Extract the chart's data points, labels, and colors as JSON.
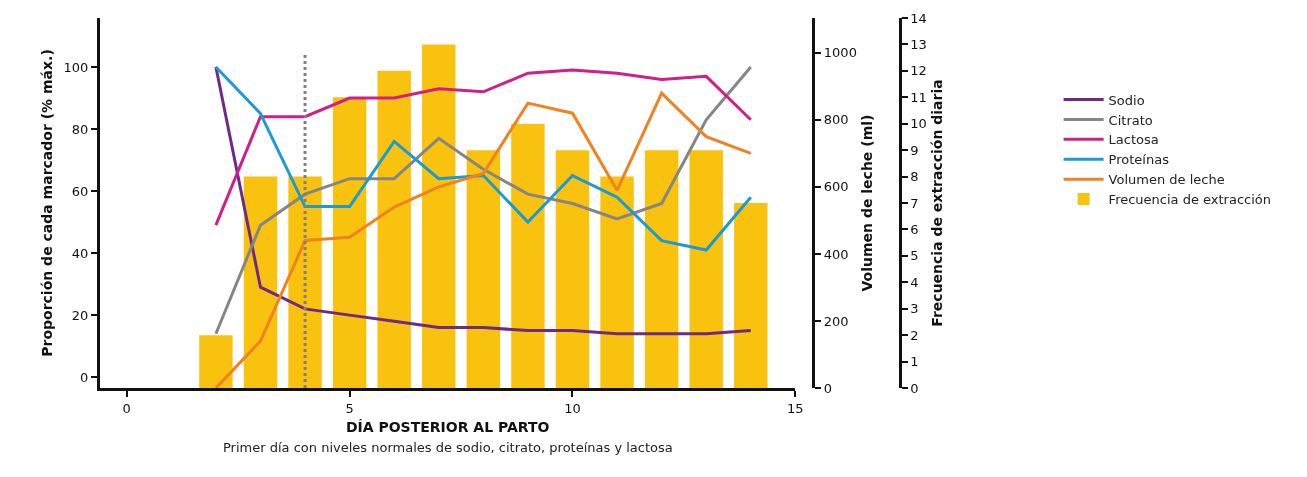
{
  "chart_data": {
    "type": "line",
    "xlabel": "DÍA POSTERIOR AL PARTO",
    "ylabel": "Proporción de cada marcador (% máx.)",
    "y2label": "Volumen de leche (ml)",
    "y3label": "Frecuencia de extracción diaria",
    "annotations": [
      "Primer día con niveles normales de sodio, citrato, proteínas y lactosa"
    ],
    "x": [
      2,
      3,
      4,
      5,
      6,
      7,
      8,
      9,
      10,
      11,
      12,
      13,
      14
    ],
    "xlim": [
      -0.6,
      15
    ],
    "xticks": [
      0,
      5,
      10,
      15
    ],
    "ylim": [
      -3.5,
      115.8
    ],
    "yticks": [
      0,
      20,
      40,
      60,
      80,
      100
    ],
    "y2lim": [
      0,
      1104
    ],
    "y2ticks": [
      0,
      200,
      400,
      600,
      800,
      1000
    ],
    "y3lim": [
      0,
      14
    ],
    "y3ticks": [
      0,
      1,
      2,
      3,
      4,
      5,
      6,
      7,
      8,
      9,
      10,
      11,
      12,
      13,
      14
    ],
    "legend": "right",
    "marker": "none",
    "line_style": "solid",
    "ref_lines": [
      {
        "axis": "x",
        "value": 4,
        "color": "#808080",
        "line_style": "dotted"
      }
    ],
    "series": [
      {
        "name": "Sodio",
        "color": "#6e2a84",
        "values": [
          100,
          29,
          22,
          20,
          18,
          16,
          16,
          15,
          15,
          14,
          14,
          14,
          15
        ]
      },
      {
        "name": "Citrato",
        "color": "#858585",
        "values": [
          14,
          49,
          59,
          64,
          64,
          77,
          67,
          59,
          56,
          51,
          56,
          83,
          100
        ]
      },
      {
        "name": "Lactosa",
        "color": "#d11f8a",
        "values": [
          49,
          84,
          84,
          90,
          90,
          93,
          92,
          98,
          99,
          98,
          96,
          97,
          83
        ]
      },
      {
        "name": "Proteínas",
        "color": "#1a9ad6",
        "values": [
          100,
          85,
          55,
          55,
          76,
          64,
          65,
          50,
          65,
          58,
          44,
          41,
          58
        ]
      },
      {
        "name": "Volumen de leche",
        "color": "#ef8222",
        "axis": "y2",
        "values": [
          0,
          140,
          440,
          450,
          540,
          600,
          640,
          850,
          820,
          590,
          880,
          750,
          700
        ]
      },
      {
        "name": "Frecuencia de extracción",
        "color": "#f9c20f",
        "type": "bar",
        "axis": "y3",
        "values": [
          2,
          8,
          8,
          11,
          12,
          13,
          9,
          10,
          9,
          8,
          9,
          9,
          7
        ]
      }
    ]
  }
}
